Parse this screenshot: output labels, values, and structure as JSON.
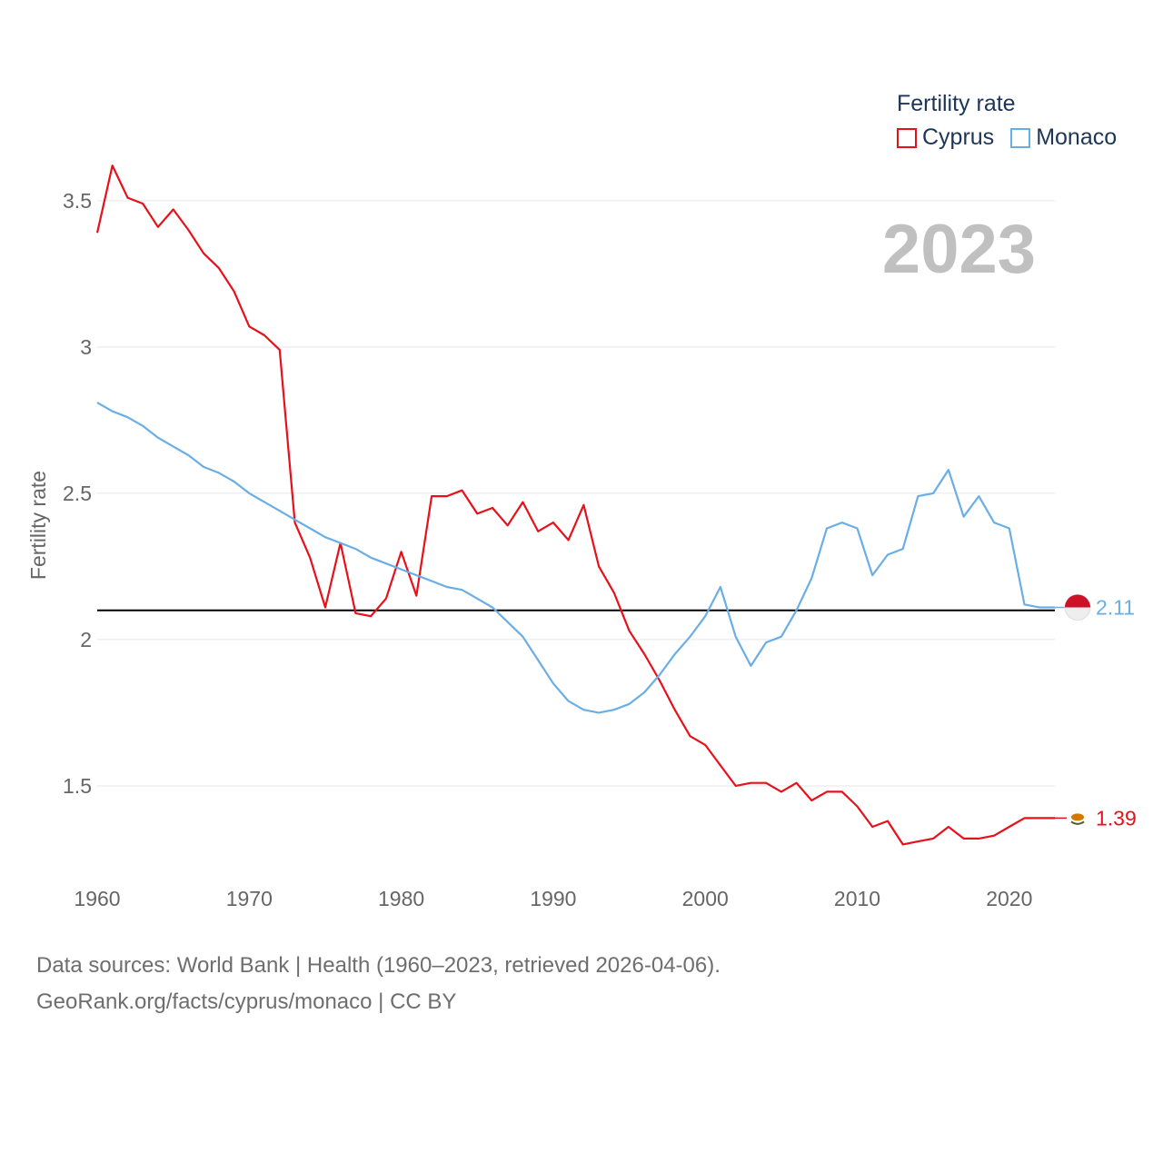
{
  "legend": {
    "title": "Fertility rate",
    "items": [
      {
        "label": "Cyprus",
        "color": "#e8101a"
      },
      {
        "label": "Monaco",
        "color": "#6aaee6"
      }
    ]
  },
  "footer": {
    "line1": "Data sources: World Bank | Health (1960–2023, retrieved 2026-04-06).",
    "line2": "GeoRank.org/facts/cyprus/monaco | CC BY"
  },
  "chart_data": {
    "type": "line",
    "title": "",
    "year_label": "2023",
    "xlabel": "",
    "ylabel": "Fertility rate",
    "xlim": [
      1960,
      2023
    ],
    "ylim": [
      1.18,
      3.72
    ],
    "x_ticks": [
      1960,
      1970,
      1980,
      1990,
      2000,
      2010,
      2020
    ],
    "y_ticks": [
      1.5,
      2,
      2.5,
      3,
      3.5
    ],
    "y_tick_labels": [
      "1.5",
      "2",
      "2.5",
      "3",
      "3.5"
    ],
    "reference_line": 2.1,
    "grid": true,
    "x": [
      1960,
      1961,
      1962,
      1963,
      1964,
      1965,
      1966,
      1967,
      1968,
      1969,
      1970,
      1971,
      1972,
      1973,
      1974,
      1975,
      1976,
      1977,
      1978,
      1979,
      1980,
      1981,
      1982,
      1983,
      1984,
      1985,
      1986,
      1987,
      1988,
      1989,
      1990,
      1991,
      1992,
      1993,
      1994,
      1995,
      1996,
      1997,
      1998,
      1999,
      2000,
      2001,
      2002,
      2003,
      2004,
      2005,
      2006,
      2007,
      2008,
      2009,
      2010,
      2011,
      2012,
      2013,
      2014,
      2015,
      2016,
      2017,
      2018,
      2019,
      2020,
      2021,
      2022,
      2023
    ],
    "series": [
      {
        "name": "Cyprus",
        "color": "#e8101a",
        "end_label": "1.39",
        "values": [
          3.39,
          3.62,
          3.51,
          3.49,
          3.41,
          3.47,
          3.4,
          3.32,
          3.27,
          3.19,
          3.07,
          3.04,
          2.99,
          2.4,
          2.28,
          2.11,
          2.33,
          2.09,
          2.08,
          2.14,
          2.3,
          2.15,
          2.49,
          2.49,
          2.51,
          2.43,
          2.45,
          2.39,
          2.47,
          2.37,
          2.4,
          2.34,
          2.46,
          2.25,
          2.16,
          2.03,
          1.95,
          1.86,
          1.76,
          1.67,
          1.64,
          1.57,
          1.5,
          1.51,
          1.51,
          1.48,
          1.51,
          1.45,
          1.48,
          1.48,
          1.43,
          1.36,
          1.38,
          1.3,
          1.31,
          1.32,
          1.36,
          1.32,
          1.32,
          1.33,
          1.36,
          1.39,
          1.39,
          1.39
        ]
      },
      {
        "name": "Monaco",
        "color": "#6aaee6",
        "end_label": "2.11",
        "values": [
          2.81,
          2.78,
          2.76,
          2.73,
          2.69,
          2.66,
          2.63,
          2.59,
          2.57,
          2.54,
          2.5,
          2.47,
          2.44,
          2.41,
          2.38,
          2.35,
          2.33,
          2.31,
          2.28,
          2.26,
          2.24,
          2.22,
          2.2,
          2.18,
          2.17,
          2.14,
          2.11,
          2.06,
          2.01,
          1.93,
          1.85,
          1.79,
          1.76,
          1.75,
          1.76,
          1.78,
          1.82,
          1.88,
          1.95,
          2.01,
          2.08,
          2.18,
          2.01,
          1.91,
          1.99,
          2.01,
          2.1,
          2.21,
          2.38,
          2.4,
          2.38,
          2.22,
          2.29,
          2.31,
          2.49,
          2.5,
          2.58,
          2.42,
          2.49,
          2.4,
          2.38,
          2.12,
          2.11,
          2.11
        ]
      }
    ]
  }
}
